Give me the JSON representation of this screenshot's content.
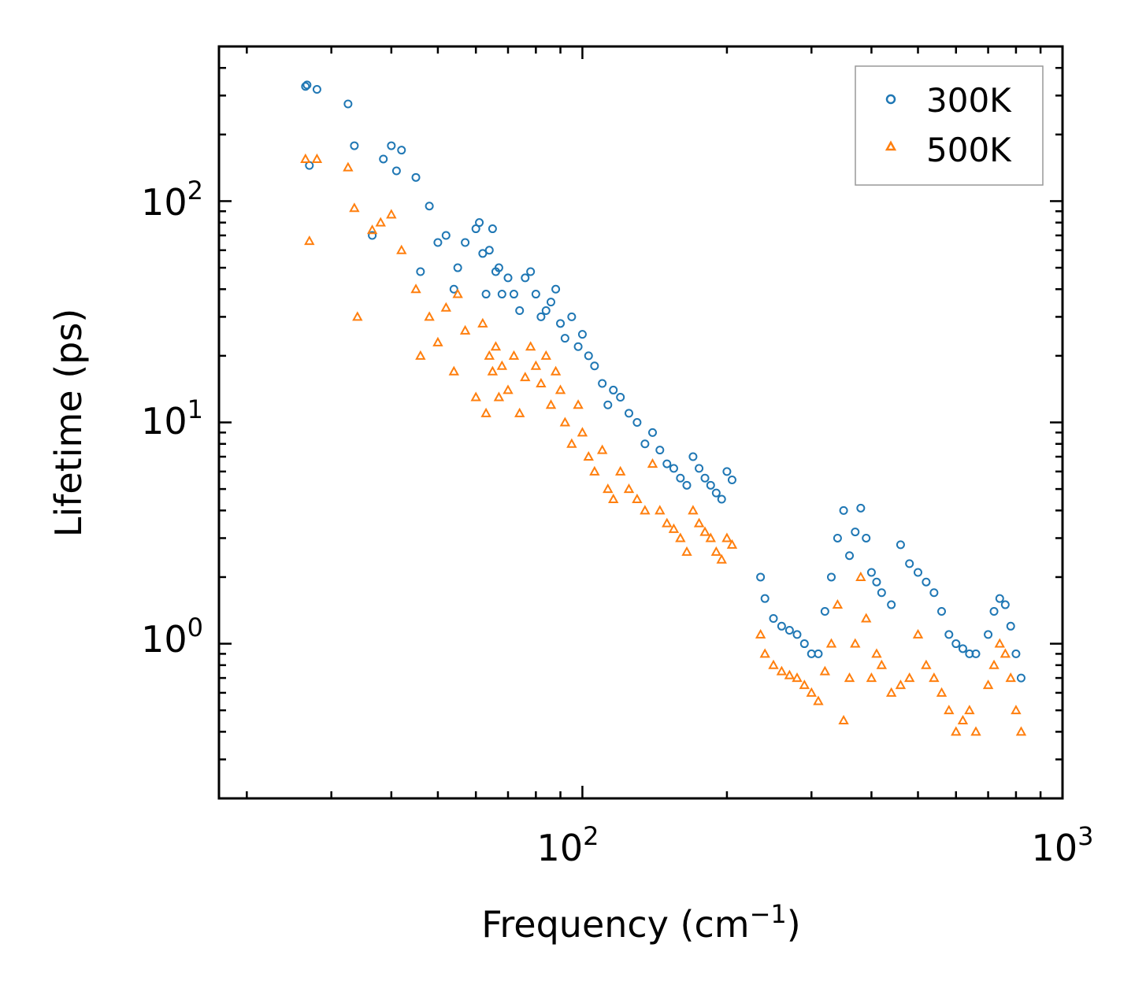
{
  "chart_data": {
    "type": "scatter",
    "xscale": "log",
    "yscale": "log",
    "xlim": [
      17.5,
      1000
    ],
    "ylim": [
      0.2,
      500
    ],
    "xlabel": "Frequency (cm",
    "xlabel_sup": "−1",
    "xlabel_end": ")",
    "ylabel": "Lifetime (ps)",
    "x_ticks": [
      {
        "value": 100,
        "base": "10",
        "exp": "2"
      },
      {
        "value": 1000,
        "base": "10",
        "exp": "3"
      }
    ],
    "y_ticks": [
      {
        "value": 1,
        "base": "10",
        "exp": "0"
      },
      {
        "value": 10,
        "base": "10",
        "exp": "1"
      },
      {
        "value": 100,
        "base": "10",
        "exp": "2"
      }
    ],
    "legend": {
      "position": "top-right"
    },
    "series": [
      {
        "name": "300K",
        "marker": "circle",
        "color": "#1f77b4",
        "x": [
          26.5,
          26.7,
          28,
          27,
          32.5,
          33.5,
          36.5,
          38.5,
          40,
          41,
          42,
          45,
          46,
          48,
          50,
          52,
          54,
          55,
          57,
          60,
          61,
          62,
          63,
          64,
          65,
          66,
          67,
          68,
          70,
          72,
          74,
          76,
          78,
          80,
          82,
          84,
          86,
          88,
          90,
          92,
          95,
          98,
          100,
          103,
          106,
          110,
          113,
          116,
          120,
          125,
          130,
          135,
          140,
          145,
          150,
          155,
          160,
          165,
          170,
          175,
          180,
          185,
          190,
          195,
          200,
          205,
          235,
          240,
          250,
          260,
          270,
          280,
          290,
          300,
          310,
          320,
          330,
          340,
          350,
          360,
          370,
          380,
          390,
          400,
          410,
          420,
          440,
          460,
          480,
          500,
          520,
          540,
          560,
          580,
          600,
          620,
          640,
          660,
          700,
          720,
          740,
          760,
          780,
          800,
          820
        ],
        "y": [
          330,
          335,
          320,
          145,
          275,
          178,
          70,
          155,
          178,
          137,
          170,
          128,
          48,
          95,
          65,
          70,
          40,
          50,
          65,
          75,
          80,
          58,
          38,
          60,
          75,
          48,
          50,
          38,
          45,
          38,
          32,
          45,
          48,
          38,
          30,
          32,
          35,
          40,
          28,
          24,
          30,
          22,
          25,
          20,
          18,
          15,
          12,
          14,
          13,
          11,
          10,
          8,
          9,
          7.5,
          6.5,
          6.2,
          5.6,
          5.2,
          7.0,
          6.2,
          5.6,
          5.2,
          4.8,
          4.5,
          6.0,
          5.5,
          2.0,
          1.6,
          1.3,
          1.2,
          1.15,
          1.1,
          1.0,
          0.9,
          0.9,
          1.4,
          2.0,
          3.0,
          4.0,
          2.5,
          3.2,
          4.1,
          3.0,
          2.1,
          1.9,
          1.7,
          1.5,
          2.8,
          2.3,
          2.1,
          1.9,
          1.7,
          1.4,
          1.1,
          1.0,
          0.95,
          0.9,
          0.9,
          1.1,
          1.4,
          1.6,
          1.5,
          1.2,
          0.9,
          0.7
        ]
      },
      {
        "name": "500K",
        "marker": "triangle",
        "color": "#ff7f0e",
        "x": [
          26.5,
          28,
          27,
          32.5,
          33.5,
          34,
          36.5,
          38,
          40,
          42,
          45,
          46,
          48,
          50,
          52,
          54,
          55,
          57,
          60,
          62,
          63,
          64,
          65,
          66,
          67,
          68,
          70,
          72,
          74,
          76,
          78,
          80,
          82,
          84,
          86,
          88,
          90,
          92,
          95,
          98,
          100,
          103,
          106,
          110,
          113,
          116,
          120,
          125,
          130,
          135,
          140,
          145,
          150,
          155,
          160,
          165,
          170,
          175,
          180,
          185,
          190,
          195,
          200,
          205,
          235,
          240,
          250,
          260,
          270,
          280,
          290,
          300,
          310,
          320,
          330,
          340,
          350,
          360,
          370,
          380,
          390,
          400,
          410,
          420,
          440,
          460,
          480,
          500,
          520,
          540,
          560,
          580,
          600,
          620,
          640,
          660,
          700,
          720,
          740,
          760,
          780,
          800,
          820
        ],
        "y": [
          155,
          155,
          66,
          142,
          93,
          30,
          74,
          80,
          87,
          60,
          40,
          20,
          30,
          23,
          33,
          17,
          38,
          26,
          13,
          28,
          11,
          20,
          17,
          22,
          13,
          18,
          14,
          20,
          11,
          16,
          22,
          18,
          15,
          20,
          12,
          17,
          14,
          10,
          8,
          12,
          9,
          7,
          6,
          7.5,
          5,
          4.5,
          6,
          5,
          4.5,
          4,
          6.5,
          4,
          3.5,
          3.3,
          3,
          2.6,
          4.0,
          3.5,
          3.2,
          3.0,
          2.6,
          2.4,
          3.0,
          2.8,
          1.1,
          0.9,
          0.8,
          0.75,
          0.72,
          0.7,
          0.65,
          0.6,
          0.55,
          0.75,
          1.0,
          1.5,
          0.45,
          0.7,
          1.0,
          2.0,
          1.3,
          0.7,
          0.9,
          0.8,
          0.6,
          0.65,
          0.7,
          1.1,
          0.8,
          0.7,
          0.6,
          0.5,
          0.4,
          0.45,
          0.5,
          0.4,
          0.65,
          0.8,
          1.0,
          0.9,
          0.7,
          0.5,
          0.4
        ]
      }
    ]
  }
}
